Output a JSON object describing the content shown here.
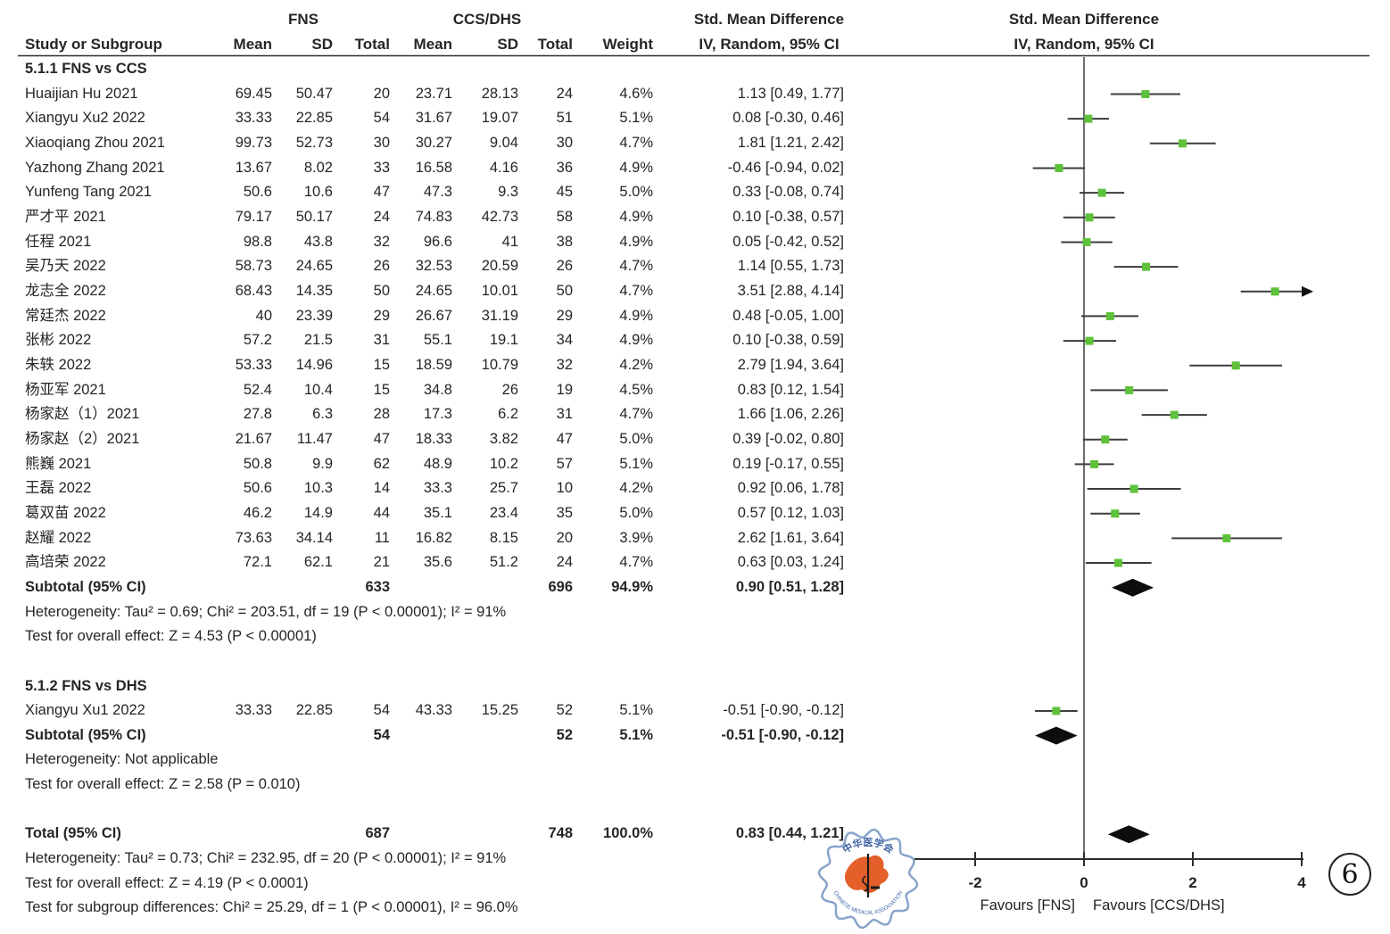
{
  "header": {
    "study_col": "Study or Subgroup",
    "group1": "FNS",
    "group2": "CCS/DHS",
    "cols": [
      "Mean",
      "SD",
      "Total",
      "Mean",
      "SD",
      "Total",
      "Weight"
    ],
    "effect_title": "Std. Mean Difference",
    "effect_subtitle": "IV, Random, 95% CI"
  },
  "chart_data": {
    "type": "forest",
    "effect_measure": "Std. Mean Difference (IV, Random, 95% CI)",
    "xlim": [
      -4,
      4
    ],
    "xticks": [
      -2,
      0,
      2,
      4
    ],
    "favours_left": "Favours [FNS]",
    "favours_right": "Favours [CCS/DHS]",
    "marker_color": "#5EC13A",
    "sections": [
      {
        "title": "5.1.1 FNS vs CCS",
        "studies": [
          {
            "name": "Huaijian Hu 2021",
            "mean1": "69.45",
            "sd1": "50.47",
            "n1": "20",
            "mean2": "23.71",
            "sd2": "28.13",
            "n2": "24",
            "weight": "4.6%",
            "ci": "1.13 [0.49, 1.77]",
            "est": 1.13,
            "lo": 0.49,
            "hi": 1.77
          },
          {
            "name": "Xiangyu Xu2 2022",
            "mean1": "33.33",
            "sd1": "22.85",
            "n1": "54",
            "mean2": "31.67",
            "sd2": "19.07",
            "n2": "51",
            "weight": "5.1%",
            "ci": "0.08 [-0.30, 0.46]",
            "est": 0.08,
            "lo": -0.3,
            "hi": 0.46
          },
          {
            "name": "Xiaoqiang Zhou 2021",
            "mean1": "99.73",
            "sd1": "52.73",
            "n1": "30",
            "mean2": "30.27",
            "sd2": "9.04",
            "n2": "30",
            "weight": "4.7%",
            "ci": "1.81 [1.21, 2.42]",
            "est": 1.81,
            "lo": 1.21,
            "hi": 2.42
          },
          {
            "name": "Yazhong Zhang 2021",
            "mean1": "13.67",
            "sd1": "8.02",
            "n1": "33",
            "mean2": "16.58",
            "sd2": "4.16",
            "n2": "36",
            "weight": "4.9%",
            "ci": "-0.46 [-0.94, 0.02]",
            "est": -0.46,
            "lo": -0.94,
            "hi": 0.02
          },
          {
            "name": "Yunfeng Tang 2021",
            "mean1": "50.6",
            "sd1": "10.6",
            "n1": "47",
            "mean2": "47.3",
            "sd2": "9.3",
            "n2": "45",
            "weight": "5.0%",
            "ci": "0.33 [-0.08, 0.74]",
            "est": 0.33,
            "lo": -0.08,
            "hi": 0.74
          },
          {
            "name": "严才平 2021",
            "mean1": "79.17",
            "sd1": "50.17",
            "n1": "24",
            "mean2": "74.83",
            "sd2": "42.73",
            "n2": "58",
            "weight": "4.9%",
            "ci": "0.10 [-0.38, 0.57]",
            "est": 0.1,
            "lo": -0.38,
            "hi": 0.57
          },
          {
            "name": "任程 2021",
            "mean1": "98.8",
            "sd1": "43.8",
            "n1": "32",
            "mean2": "96.6",
            "sd2": "41",
            "n2": "38",
            "weight": "4.9%",
            "ci": "0.05 [-0.42, 0.52]",
            "est": 0.05,
            "lo": -0.42,
            "hi": 0.52
          },
          {
            "name": "吴乃天 2022",
            "mean1": "58.73",
            "sd1": "24.65",
            "n1": "26",
            "mean2": "32.53",
            "sd2": "20.59",
            "n2": "26",
            "weight": "4.7%",
            "ci": "1.14 [0.55, 1.73]",
            "est": 1.14,
            "lo": 0.55,
            "hi": 1.73
          },
          {
            "name": "龙志全 2022",
            "mean1": "68.43",
            "sd1": "14.35",
            "n1": "50",
            "mean2": "24.65",
            "sd2": "10.01",
            "n2": "50",
            "weight": "4.7%",
            "ci": "3.51 [2.88, 4.14]",
            "est": 3.51,
            "lo": 2.88,
            "hi": 4.14
          },
          {
            "name": "常廷杰 2022",
            "mean1": "40",
            "sd1": "23.39",
            "n1": "29",
            "mean2": "26.67",
            "sd2": "31.19",
            "n2": "29",
            "weight": "4.9%",
            "ci": "0.48 [-0.05, 1.00]",
            "est": 0.48,
            "lo": -0.05,
            "hi": 1.0
          },
          {
            "name": "张彬 2022",
            "mean1": "57.2",
            "sd1": "21.5",
            "n1": "31",
            "mean2": "55.1",
            "sd2": "19.1",
            "n2": "34",
            "weight": "4.9%",
            "ci": "0.10 [-0.38, 0.59]",
            "est": 0.1,
            "lo": -0.38,
            "hi": 0.59
          },
          {
            "name": "朱轶 2022",
            "mean1": "53.33",
            "sd1": "14.96",
            "n1": "15",
            "mean2": "18.59",
            "sd2": "10.79",
            "n2": "32",
            "weight": "4.2%",
            "ci": "2.79 [1.94, 3.64]",
            "est": 2.79,
            "lo": 1.94,
            "hi": 3.64
          },
          {
            "name": "杨亚军 2021",
            "mean1": "52.4",
            "sd1": "10.4",
            "n1": "15",
            "mean2": "34.8",
            "sd2": "26",
            "n2": "19",
            "weight": "4.5%",
            "ci": "0.83 [0.12, 1.54]",
            "est": 0.83,
            "lo": 0.12,
            "hi": 1.54
          },
          {
            "name": "杨家赵（1）2021",
            "mean1": "27.8",
            "sd1": "6.3",
            "n1": "28",
            "mean2": "17.3",
            "sd2": "6.2",
            "n2": "31",
            "weight": "4.7%",
            "ci": "1.66 [1.06, 2.26]",
            "est": 1.66,
            "lo": 1.06,
            "hi": 2.26
          },
          {
            "name": "杨家赵（2）2021",
            "mean1": "21.67",
            "sd1": "11.47",
            "n1": "47",
            "mean2": "18.33",
            "sd2": "3.82",
            "n2": "47",
            "weight": "5.0%",
            "ci": "0.39 [-0.02, 0.80]",
            "est": 0.39,
            "lo": -0.02,
            "hi": 0.8
          },
          {
            "name": "熊巍 2021",
            "mean1": "50.8",
            "sd1": "9.9",
            "n1": "62",
            "mean2": "48.9",
            "sd2": "10.2",
            "n2": "57",
            "weight": "5.1%",
            "ci": "0.19 [-0.17, 0.55]",
            "est": 0.19,
            "lo": -0.17,
            "hi": 0.55
          },
          {
            "name": "王磊 2022",
            "mean1": "50.6",
            "sd1": "10.3",
            "n1": "14",
            "mean2": "33.3",
            "sd2": "25.7",
            "n2": "10",
            "weight": "4.2%",
            "ci": "0.92 [0.06, 1.78]",
            "est": 0.92,
            "lo": 0.06,
            "hi": 1.78
          },
          {
            "name": "葛双苗 2022",
            "mean1": "46.2",
            "sd1": "14.9",
            "n1": "44",
            "mean2": "35.1",
            "sd2": "23.4",
            "n2": "35",
            "weight": "5.0%",
            "ci": "0.57 [0.12, 1.03]",
            "est": 0.57,
            "lo": 0.12,
            "hi": 1.03
          },
          {
            "name": "赵耀 2022",
            "mean1": "73.63",
            "sd1": "34.14",
            "n1": "11",
            "mean2": "16.82",
            "sd2": "8.15",
            "n2": "20",
            "weight": "3.9%",
            "ci": "2.62 [1.61, 3.64]",
            "est": 2.62,
            "lo": 1.61,
            "hi": 3.64
          },
          {
            "name": "高培荣 2022",
            "mean1": "72.1",
            "sd1": "62.1",
            "n1": "21",
            "mean2": "35.6",
            "sd2": "51.2",
            "n2": "24",
            "weight": "4.7%",
            "ci": "0.63 [0.03, 1.24]",
            "est": 0.63,
            "lo": 0.03,
            "hi": 1.24
          }
        ],
        "subtotal": {
          "label": "Subtotal (95% CI)",
          "n1": "633",
          "n2": "696",
          "weight": "94.9%",
          "ci": "0.90 [0.51, 1.28]",
          "est": 0.9,
          "lo": 0.51,
          "hi": 1.28
        },
        "heterogeneity": "Heterogeneity: Tau² = 0.69; Chi² = 203.51, df = 19 (P < 0.00001); I² = 91%",
        "overall_effect": "Test for overall effect: Z = 4.53 (P < 0.00001)"
      },
      {
        "title": "5.1.2 FNS vs DHS",
        "studies": [
          {
            "name": "Xiangyu Xu1 2022",
            "mean1": "33.33",
            "sd1": "22.85",
            "n1": "54",
            "mean2": "43.33",
            "sd2": "15.25",
            "n2": "52",
            "weight": "5.1%",
            "ci": "-0.51 [-0.90, -0.12]",
            "est": -0.51,
            "lo": -0.9,
            "hi": -0.12
          }
        ],
        "subtotal": {
          "label": "Subtotal (95% CI)",
          "n1": "54",
          "n2": "52",
          "weight": "5.1%",
          "ci": "-0.51 [-0.90, -0.12]",
          "est": -0.51,
          "lo": -0.9,
          "hi": -0.12
        },
        "heterogeneity": "Heterogeneity: Not applicable",
        "overall_effect": "Test for overall effect: Z = 2.58 (P = 0.010)"
      }
    ],
    "total": {
      "label": "Total (95% CI)",
      "n1": "687",
      "n2": "748",
      "weight": "100.0%",
      "ci": "0.83 [0.44, 1.21]",
      "est": 0.83,
      "lo": 0.44,
      "hi": 1.21
    },
    "total_heterogeneity": "Heterogeneity: Tau² = 0.73; Chi² = 232.95, df = 20 (P < 0.00001); I² = 91%",
    "total_overall_effect": "Test for overall effect: Z = 4.19 (P < 0.0001)",
    "subgroup_differences": "Test for subgroup differences: Chi² = 25.29, df = 1 (P < 0.00001), I² = 96.0%"
  },
  "stamp": {
    "label": "中华医学会",
    "sublabel": "CHINESE MEDICAL ASSOCIATION",
    "border_color": "#89A4CB",
    "map_color": "#E45F2A"
  },
  "figure_number": "6"
}
